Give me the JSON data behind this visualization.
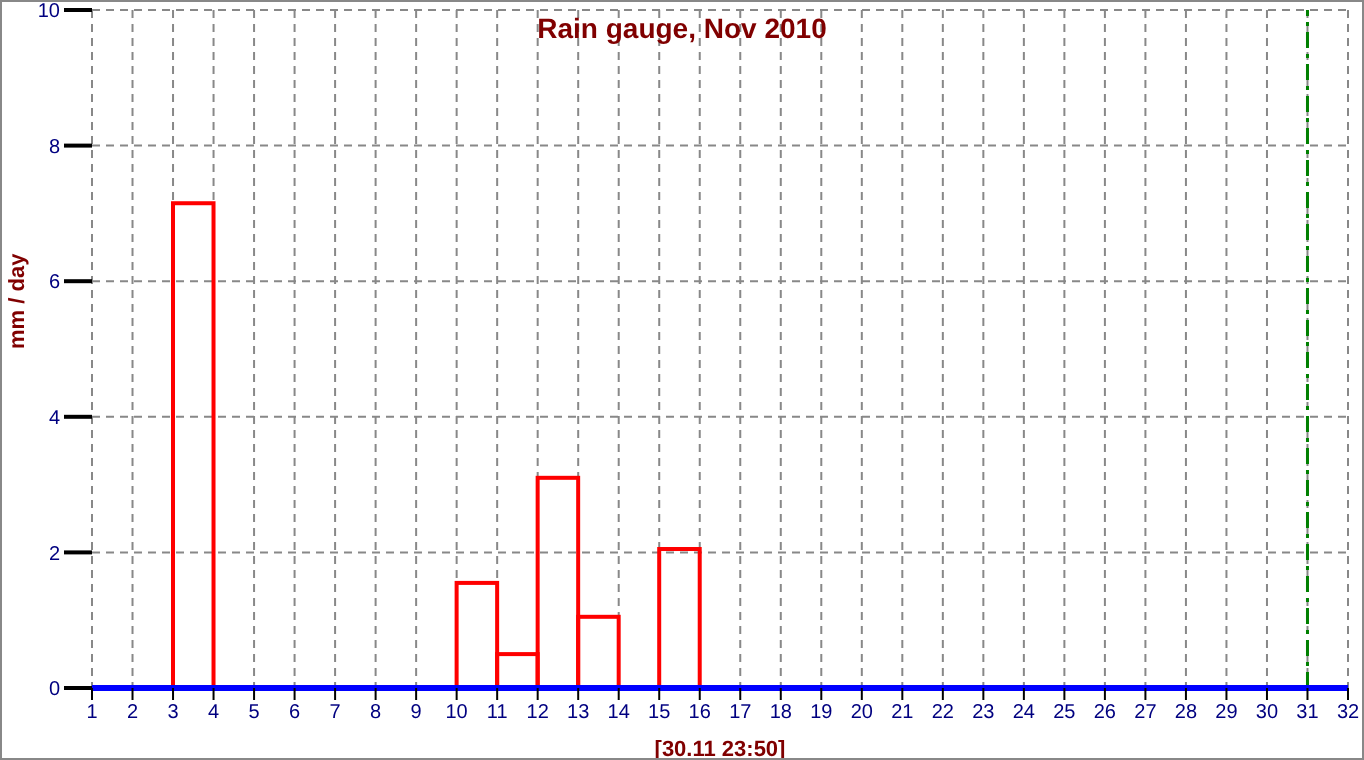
{
  "chart_data": {
    "type": "histogram",
    "title": "Rain gauge, Nov 2010",
    "xlabel": "[30.11 23:50]",
    "ylabel": "mm / day",
    "bins": [
      1,
      2,
      3,
      4,
      5,
      6,
      7,
      8,
      9,
      10,
      11,
      12,
      13,
      14,
      15,
      16,
      17,
      18,
      19,
      20,
      21,
      22,
      23,
      24,
      25,
      26,
      27,
      28,
      29,
      30,
      31,
      32
    ],
    "values": [
      0,
      0,
      7.15,
      0,
      0,
      0,
      0,
      0,
      0,
      1.55,
      0.5,
      3.1,
      1.05,
      0,
      2.05,
      0,
      0,
      0,
      0,
      0,
      0,
      0,
      0,
      0,
      0,
      0,
      0,
      0,
      0,
      0,
      0
    ],
    "color": "#ff0000",
    "xlim": [
      1,
      32
    ],
    "xticks": [
      1,
      2,
      3,
      4,
      5,
      6,
      7,
      8,
      9,
      10,
      11,
      12,
      13,
      14,
      15,
      16,
      17,
      18,
      19,
      20,
      21,
      22,
      23,
      24,
      25,
      26,
      27,
      28,
      29,
      30,
      31,
      32
    ],
    "ylim": [
      0,
      10
    ],
    "yticks": [
      0,
      2,
      4,
      6,
      8,
      10
    ],
    "ref_lines": [
      {
        "axis": "x",
        "value": 31,
        "color": "#008000",
        "line_style": "dashdot"
      }
    ],
    "grid": true
  }
}
